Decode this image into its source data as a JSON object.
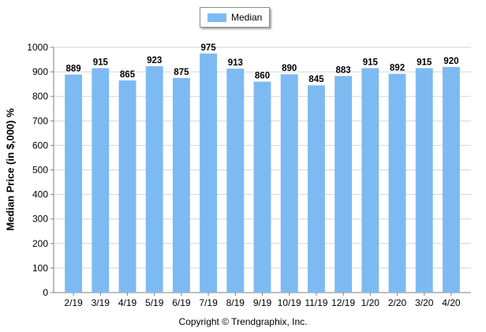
{
  "legend": {
    "label": "Median"
  },
  "footer": {
    "copyright": "Copyright © Trendgraphix, Inc."
  },
  "colors": {
    "bar": "#7ebaf2",
    "grid": "#d6d6d6",
    "axis": "#808080"
  },
  "chart_data": {
    "type": "bar",
    "title": "",
    "xlabel": "",
    "ylabel": "Median Price (in $,000) %",
    "ylim": [
      0,
      1000
    ],
    "yticks": [
      0,
      100,
      200,
      300,
      400,
      500,
      600,
      700,
      800,
      900,
      1000
    ],
    "grid": true,
    "legend_position": "top-center",
    "categories": [
      "2/19",
      "3/19",
      "4/19",
      "5/19",
      "6/19",
      "7/19",
      "8/19",
      "9/19",
      "10/19",
      "11/19",
      "12/19",
      "1/20",
      "2/20",
      "3/20",
      "4/20"
    ],
    "series": [
      {
        "name": "Median",
        "values": [
          889,
          915,
          865,
          923,
          875,
          975,
          913,
          860,
          890,
          845,
          883,
          915,
          892,
          915,
          920
        ]
      }
    ]
  }
}
